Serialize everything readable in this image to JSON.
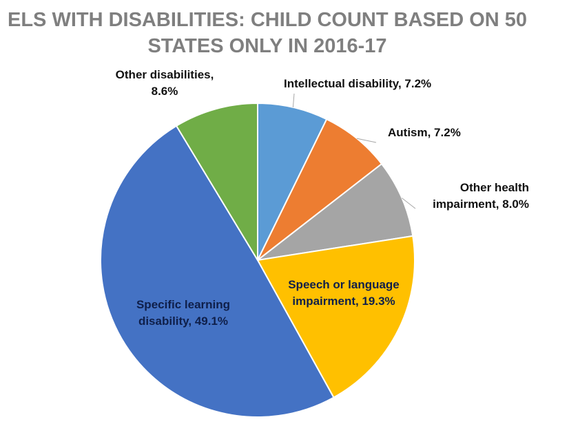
{
  "chart_data": {
    "type": "pie",
    "title_lines": [
      "ELS WITH DISABILITIES: CHILD COUNT BASED ON 50",
      "STATES ONLY IN 2016-17"
    ],
    "slices": [
      {
        "label_lines": [
          "Intellectual disability, 7.2%"
        ],
        "value": 7.2,
        "color": "#5b9bd5"
      },
      {
        "label_lines": [
          "Autism, 7.2%"
        ],
        "value": 7.2,
        "color": "#ed7d31"
      },
      {
        "label_lines": [
          "Other health",
          "impairment, 8.0%"
        ],
        "value": 8.0,
        "color": "#a5a5a5"
      },
      {
        "label_lines": [
          "Speech or language",
          "impairment, 19.3%"
        ],
        "value": 19.3,
        "color": "#ffc000"
      },
      {
        "label_lines": [
          "Specific learning",
          "disability, 49.1%"
        ],
        "value": 49.1,
        "color": "#4472c4"
      },
      {
        "label_lines": [
          "Other disabilities,",
          "8.6%"
        ],
        "value": 8.6,
        "color": "#70ad47"
      }
    ]
  }
}
